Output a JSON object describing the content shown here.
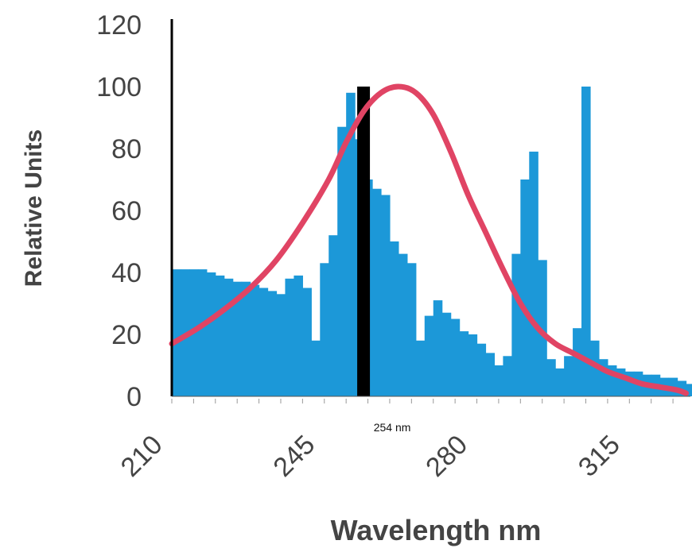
{
  "chart_data": {
    "type": "bar",
    "xlabel": "Wavelength nm",
    "ylabel": "Relative Units",
    "xlim": [
      210,
      329
    ],
    "ylim": [
      0,
      120
    ],
    "y_ticks": [
      0,
      20,
      40,
      60,
      80,
      100,
      120
    ],
    "x_ticks": [
      210,
      245,
      280,
      315
    ],
    "grid": false,
    "colors": {
      "bars": "#1c98d8",
      "curve": "#e04464",
      "marker": "#000000"
    },
    "bar_width": 2,
    "bars": {
      "x": [
        210,
        212,
        214,
        216,
        218,
        220,
        222,
        224,
        226,
        228,
        230,
        232,
        234,
        236,
        238,
        240,
        242,
        244,
        246,
        248,
        250,
        252,
        254,
        256,
        258,
        260,
        262,
        264,
        266,
        268,
        270,
        272,
        274,
        276,
        278,
        280,
        282,
        284,
        286,
        288,
        290,
        292,
        294,
        296,
        298,
        300,
        302,
        304,
        306,
        308,
        310,
        312,
        314,
        316,
        318,
        320,
        322,
        324,
        326,
        328
      ],
      "values": [
        41,
        41,
        41,
        41,
        40,
        39,
        38,
        37,
        37,
        36,
        35,
        34,
        33,
        38,
        39,
        35,
        18,
        43,
        52,
        87,
        98,
        83,
        70,
        67,
        65,
        50,
        46,
        43,
        18,
        26,
        31,
        27,
        25,
        21,
        20,
        17,
        14,
        10,
        13,
        46,
        70,
        79,
        44,
        12,
        9,
        13,
        22,
        100,
        18,
        12,
        10,
        9,
        8,
        8,
        7,
        7,
        6,
        6,
        5,
        4
      ]
    },
    "curve": {
      "name": "",
      "x": [
        210,
        216,
        222,
        228,
        234,
        240,
        246,
        250,
        254,
        258,
        262,
        266,
        270,
        274,
        278,
        282,
        286,
        290,
        294,
        298,
        302,
        306,
        310,
        314,
        318,
        322,
        326,
        328
      ],
      "y": [
        17,
        22,
        28,
        35,
        44,
        56,
        70,
        82,
        92,
        98,
        100,
        98,
        91,
        79,
        65,
        53,
        41,
        30,
        22,
        17,
        14,
        11,
        8,
        6,
        4,
        3,
        2,
        1
      ]
    },
    "marker": {
      "x": 254,
      "value": 100,
      "label": "254 nm"
    }
  }
}
